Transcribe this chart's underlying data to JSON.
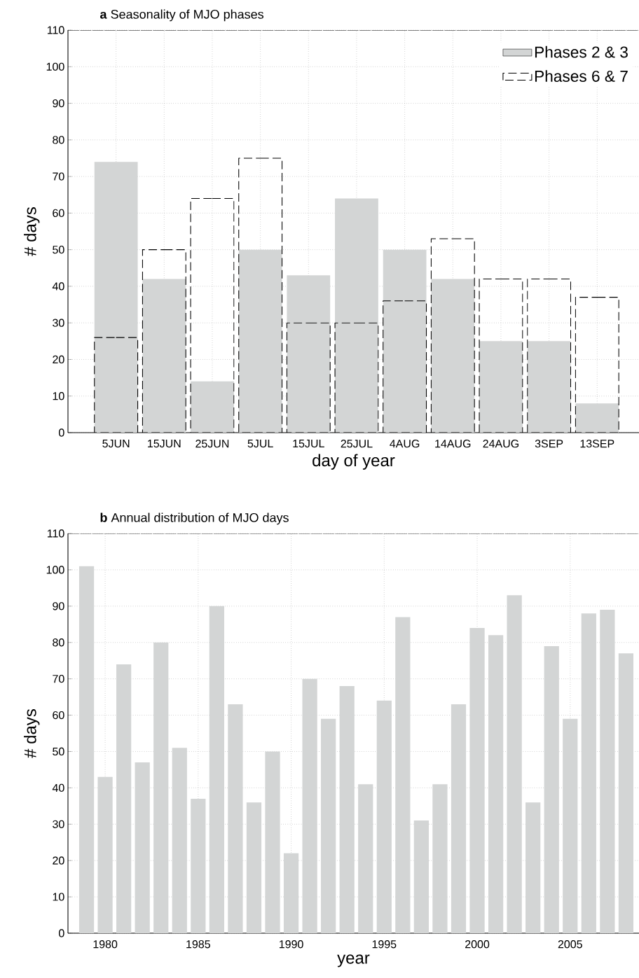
{
  "chart_data": [
    {
      "type": "bar",
      "title": "**a** Seasonality of MJO phases",
      "xlabel": "day of year",
      "ylabel": "# days",
      "categories": [
        "5JUN",
        "15JUN",
        "25JUN",
        "5JUL",
        "15JUL",
        "25JUL",
        "4AUG",
        "14AUG",
        "24AUG",
        "3SEP",
        "13SEP"
      ],
      "series": [
        {
          "name": "Phases 2 & 3",
          "color": "#d3d5d5",
          "values": [
            74,
            42,
            14,
            50,
            43,
            64,
            50,
            42,
            25,
            25,
            8
          ]
        },
        {
          "name": "Phases 6 & 7",
          "color": "#000000",
          "line_style": "dashed",
          "values": [
            26,
            50,
            64,
            75,
            30,
            30,
            36,
            53,
            42,
            42,
            37
          ]
        }
      ],
      "ylim": [
        0,
        110
      ],
      "yticks": [
        0,
        10,
        20,
        30,
        40,
        50,
        60,
        70,
        80,
        90,
        100,
        110
      ],
      "grid": true,
      "legend": "top right"
    },
    {
      "type": "bar",
      "title": "**b** Annual distribution of MJO days",
      "xlabel": "year",
      "ylabel": "# days",
      "x": [
        1979,
        1980,
        1981,
        1982,
        1983,
        1984,
        1985,
        1986,
        1987,
        1988,
        1989,
        1990,
        1991,
        1992,
        1993,
        1994,
        1995,
        1996,
        1997,
        1998,
        1999,
        2000,
        2001,
        2002,
        2003,
        2004,
        2005,
        2006,
        2007,
        2008
      ],
      "values": [
        101,
        43,
        74,
        47,
        80,
        51,
        37,
        90,
        63,
        36,
        50,
        22,
        70,
        59,
        68,
        41,
        64,
        87,
        31,
        41,
        63,
        84,
        82,
        93,
        36,
        79,
        59,
        88,
        89,
        77
      ],
      "color": "#d3d5d5",
      "xlim": [
        1978,
        2008.7
      ],
      "xticks": [
        1980,
        1985,
        1990,
        1995,
        2000,
        2005
      ],
      "ylim": [
        0,
        110
      ],
      "yticks": [
        0,
        10,
        20,
        30,
        40,
        50,
        60,
        70,
        80,
        90,
        100,
        110
      ],
      "grid": true
    }
  ]
}
